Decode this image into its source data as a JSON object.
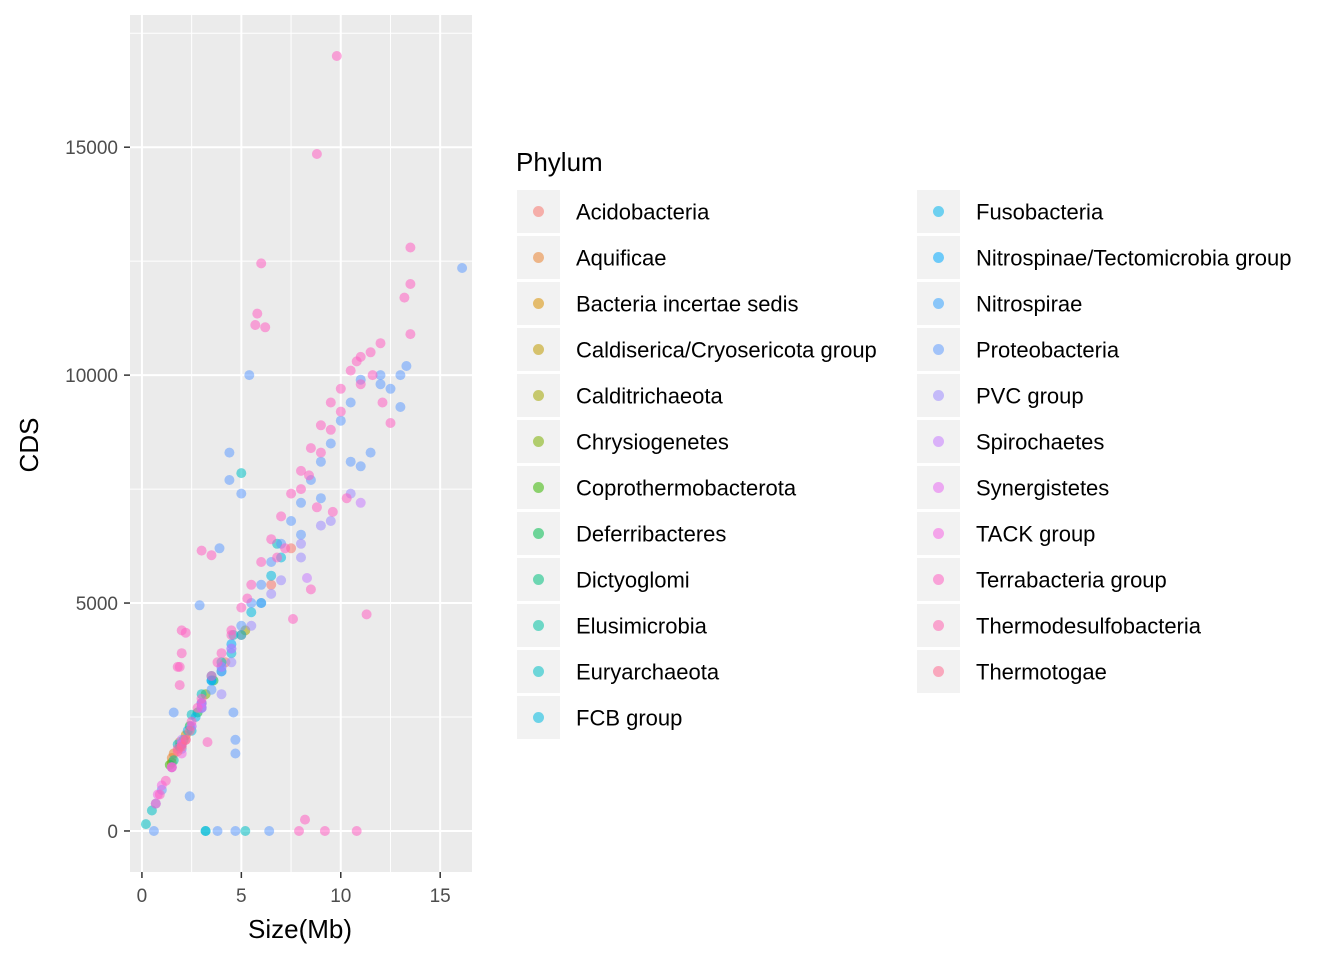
{
  "chart_data": {
    "type": "scatter",
    "xlabel": "Size(Mb)",
    "ylabel": "CDS",
    "xlim": [
      -0.6,
      16.6
    ],
    "ylim": [
      -900,
      17900
    ],
    "x_ticks": [
      0,
      5,
      10,
      15
    ],
    "y_ticks": [
      0,
      5000,
      10000,
      15000
    ],
    "x_tick_labels": [
      "0",
      "5",
      "10",
      "15"
    ],
    "y_tick_labels": [
      "0",
      "5000",
      "10000",
      "15000"
    ],
    "grid": true,
    "panel_background": "#ebebeb",
    "point_opacity": 0.55,
    "legend": {
      "title": "Phylum",
      "placement": "right",
      "columns": 2
    },
    "series": [
      {
        "name": "Acidobacteria",
        "color": "#F8766D",
        "points": [
          [
            5.0,
            4300
          ],
          [
            6.5,
            5400
          ],
          [
            7.5,
            6200
          ],
          [
            4.2,
            3700
          ]
        ]
      },
      {
        "name": "Aquificae",
        "color": "#EA8331",
        "points": [
          [
            1.6,
            1700
          ],
          [
            1.5,
            1600
          ],
          [
            1.9,
            1950
          ]
        ]
      },
      {
        "name": "Bacteria incertae sedis",
        "color": "#D89000",
        "points": [
          [
            3.0,
            2800
          ],
          [
            2.2,
            2100
          ]
        ]
      },
      {
        "name": "Caldiserica/Cryosericota group",
        "color": "#C09B00",
        "points": [
          [
            1.5,
            1500
          ]
        ]
      },
      {
        "name": "Calditrichaeota",
        "color": "#A3A500",
        "points": [
          [
            5.2,
            4400
          ]
        ]
      },
      {
        "name": "Chrysiogenetes",
        "color": "#7CAE00",
        "points": [
          [
            3.2,
            3000
          ]
        ]
      },
      {
        "name": "Coprothermobacterota",
        "color": "#39B600",
        "points": [
          [
            1.4,
            1450
          ]
        ]
      },
      {
        "name": "Deferribacteres",
        "color": "#00BB4E",
        "points": [
          [
            2.4,
            2300
          ],
          [
            2.8,
            2600
          ],
          [
            3.6,
            3300
          ]
        ]
      },
      {
        "name": "Dictyoglomi",
        "color": "#00BF7D",
        "points": [
          [
            1.9,
            1850
          ],
          [
            2.0,
            1900
          ]
        ]
      },
      {
        "name": "Elusimicrobia",
        "color": "#00C1A3",
        "points": [
          [
            1.6,
            1550
          ],
          [
            2.1,
            2000
          ]
        ]
      },
      {
        "name": "Euryarchaeota",
        "color": "#00BFC4",
        "points": [
          [
            1.8,
            1900
          ],
          [
            2.5,
            2550
          ],
          [
            3.0,
            3000
          ],
          [
            3.5,
            3400
          ],
          [
            4.0,
            3700
          ],
          [
            0.5,
            450
          ],
          [
            0.2,
            150
          ],
          [
            5.0,
            7850
          ],
          [
            3.2,
            0
          ],
          [
            5.2,
            0
          ],
          [
            4.6,
            4300
          ],
          [
            6.8,
            6300
          ]
        ]
      },
      {
        "name": "FCB group",
        "color": "#00BAE0",
        "points": [
          [
            3.0,
            2700
          ],
          [
            4.0,
            3500
          ],
          [
            5.0,
            4300
          ],
          [
            6.0,
            5000
          ],
          [
            3.5,
            3300
          ],
          [
            4.5,
            3900
          ],
          [
            5.5,
            4800
          ],
          [
            6.5,
            5600
          ],
          [
            7.0,
            6000
          ],
          [
            3.2,
            0
          ],
          [
            2.5,
            2200
          ]
        ]
      },
      {
        "name": "Fusobacteria",
        "color": "#00B4EF",
        "points": [
          [
            2.0,
            1900
          ],
          [
            2.3,
            2200
          ],
          [
            2.7,
            2500
          ]
        ]
      },
      {
        "name": "Nitrospinae/Tectomicrobia group",
        "color": "#00A9FF",
        "points": [
          [
            3.5,
            3300
          ],
          [
            4.5,
            4100
          ]
        ]
      },
      {
        "name": "Nitrospirae",
        "color": "#35A2FF",
        "points": [
          [
            3.0,
            2800
          ],
          [
            4.0,
            3600
          ]
        ]
      },
      {
        "name": "Proteobacteria",
        "color": "#619CFF",
        "points": [
          [
            0.6,
            0
          ],
          [
            0.7,
            600
          ],
          [
            1.0,
            900
          ],
          [
            1.5,
            1400
          ],
          [
            2.0,
            1800
          ],
          [
            2.5,
            2300
          ],
          [
            3.0,
            2700
          ],
          [
            3.5,
            3100
          ],
          [
            4.0,
            3500
          ],
          [
            4.5,
            4000
          ],
          [
            5.0,
            4500
          ],
          [
            5.5,
            5000
          ],
          [
            6.0,
            5400
          ],
          [
            6.5,
            5900
          ],
          [
            7.0,
            6300
          ],
          [
            7.5,
            6800
          ],
          [
            8.0,
            7200
          ],
          [
            8.5,
            7700
          ],
          [
            9.0,
            8100
          ],
          [
            9.5,
            8500
          ],
          [
            10.0,
            9000
          ],
          [
            10.5,
            9400
          ],
          [
            11.0,
            9900
          ],
          [
            12.0,
            10000
          ],
          [
            13.0,
            10000
          ],
          [
            13.3,
            10200
          ],
          [
            16.1,
            12350
          ],
          [
            5.4,
            10000
          ],
          [
            4.4,
            8300
          ],
          [
            4.4,
            7700
          ],
          [
            5.0,
            7400
          ],
          [
            3.9,
            6200
          ],
          [
            2.9,
            4950
          ],
          [
            2.4,
            760
          ],
          [
            4.7,
            2000
          ],
          [
            4.7,
            1700
          ],
          [
            3.8,
            0
          ],
          [
            4.7,
            0
          ],
          [
            6.4,
            0
          ],
          [
            1.6,
            2600
          ],
          [
            12.0,
            9800
          ],
          [
            12.5,
            9700
          ],
          [
            11.0,
            8000
          ],
          [
            11.5,
            8300
          ],
          [
            13.0,
            9300
          ],
          [
            10.5,
            8100
          ],
          [
            9.0,
            7300
          ],
          [
            8.0,
            6500
          ],
          [
            6.0,
            5000
          ],
          [
            4.6,
            2600
          ]
        ]
      },
      {
        "name": "PVC group",
        "color": "#9F8CFF",
        "points": [
          [
            4.0,
            3000
          ],
          [
            5.5,
            4500
          ],
          [
            7.0,
            5500
          ],
          [
            8.0,
            6300
          ],
          [
            9.5,
            6800
          ],
          [
            10.5,
            7400
          ],
          [
            8.0,
            6000
          ],
          [
            6.5,
            5200
          ],
          [
            4.5,
            3700
          ],
          [
            9.0,
            6700
          ],
          [
            3.0,
            2800
          ]
        ]
      },
      {
        "name": "Spirochaetes",
        "color": "#C77CFF",
        "points": [
          [
            2.0,
            2000
          ],
          [
            3.0,
            2800
          ],
          [
            4.0,
            3600
          ],
          [
            4.5,
            4000
          ],
          [
            8.3,
            5550
          ],
          [
            11.0,
            7200
          ]
        ]
      },
      {
        "name": "Synergistetes",
        "color": "#E76BF3",
        "points": [
          [
            2.0,
            1900
          ],
          [
            2.5,
            2300
          ],
          [
            3.0,
            2700
          ]
        ]
      },
      {
        "name": "TACK group",
        "color": "#F564E3",
        "points": [
          [
            1.0,
            1000
          ],
          [
            1.5,
            1400
          ],
          [
            2.0,
            1700
          ],
          [
            0.8,
            800
          ]
        ]
      },
      {
        "name": "Terrabacteria group",
        "color": "#FF61C3",
        "points": [
          [
            0.7,
            600
          ],
          [
            0.9,
            800
          ],
          [
            1.2,
            1100
          ],
          [
            1.5,
            1400
          ],
          [
            2.0,
            1900
          ],
          [
            2.5,
            2400
          ],
          [
            3.0,
            2900
          ],
          [
            3.5,
            3400
          ],
          [
            4.0,
            3900
          ],
          [
            4.5,
            4400
          ],
          [
            5.0,
            4900
          ],
          [
            5.5,
            5400
          ],
          [
            6.0,
            5900
          ],
          [
            6.5,
            6400
          ],
          [
            7.0,
            6900
          ],
          [
            7.5,
            7400
          ],
          [
            8.0,
            7900
          ],
          [
            8.5,
            8400
          ],
          [
            9.0,
            8900
          ],
          [
            9.5,
            9400
          ],
          [
            10.0,
            9700
          ],
          [
            10.5,
            10100
          ],
          [
            11.0,
            10400
          ],
          [
            11.5,
            10500
          ],
          [
            12.0,
            10700
          ],
          [
            9.8,
            17000
          ],
          [
            8.8,
            14850
          ],
          [
            6.0,
            12450
          ],
          [
            5.8,
            11350
          ],
          [
            5.7,
            11100
          ],
          [
            6.2,
            11050
          ],
          [
            13.5,
            12800
          ],
          [
            13.5,
            12000
          ],
          [
            13.2,
            11700
          ],
          [
            13.5,
            10900
          ],
          [
            12.5,
            8950
          ],
          [
            11.3,
            4750
          ],
          [
            7.6,
            4650
          ],
          [
            8.5,
            5300
          ],
          [
            3.0,
            6150
          ],
          [
            3.5,
            6050
          ],
          [
            2.0,
            4400
          ],
          [
            2.2,
            4350
          ],
          [
            2.0,
            3900
          ],
          [
            1.8,
            3600
          ],
          [
            1.9,
            3600
          ],
          [
            1.9,
            3200
          ],
          [
            3.3,
            1950
          ],
          [
            8.2,
            250
          ],
          [
            7.9,
            0
          ],
          [
            9.2,
            0
          ],
          [
            10.8,
            0
          ],
          [
            9.0,
            8300
          ],
          [
            8.4,
            7800
          ],
          [
            8.0,
            7500
          ],
          [
            9.5,
            8800
          ],
          [
            10.0,
            9200
          ],
          [
            11.0,
            9800
          ],
          [
            7.2,
            6200
          ],
          [
            6.8,
            6000
          ],
          [
            5.3,
            5100
          ],
          [
            4.5,
            4300
          ],
          [
            3.8,
            3700
          ],
          [
            2.8,
            2700
          ],
          [
            10.3,
            7300
          ],
          [
            9.6,
            7000
          ],
          [
            8.8,
            7100
          ],
          [
            10.8,
            10300
          ],
          [
            11.6,
            10000
          ],
          [
            12.1,
            9400
          ]
        ]
      },
      {
        "name": "Thermodesulfobacteria",
        "color": "#FF64B0",
        "points": [
          [
            1.8,
            1800
          ],
          [
            2.2,
            2000
          ]
        ]
      },
      {
        "name": "Thermotogae",
        "color": "#FF6C91",
        "points": [
          [
            1.8,
            1750
          ],
          [
            2.0,
            1850
          ],
          [
            2.2,
            2000
          ],
          [
            2.4,
            2200
          ]
        ]
      }
    ]
  }
}
